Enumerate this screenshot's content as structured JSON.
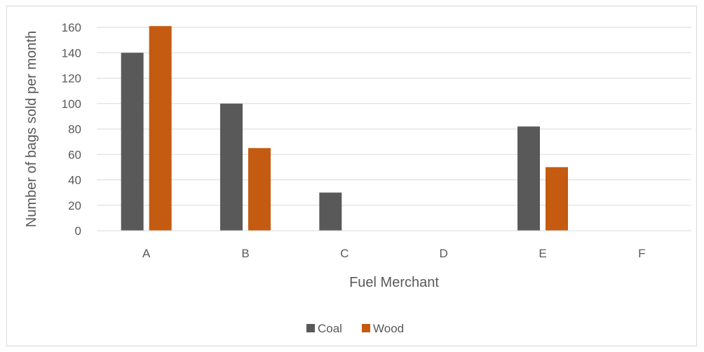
{
  "chart_data": {
    "type": "bar",
    "categories": [
      "A",
      "B",
      "C",
      "D",
      "E",
      "F"
    ],
    "series": [
      {
        "name": "Coal",
        "values": [
          140,
          100,
          30,
          0,
          82,
          0
        ],
        "color": "#595959"
      },
      {
        "name": "Wood",
        "values": [
          161,
          65,
          0,
          0,
          50,
          0
        ],
        "color": "#c55a11"
      }
    ],
    "title": "",
    "xlabel": "Fuel Merchant",
    "ylabel": "Number of bags sold per month",
    "ylim": [
      0,
      160
    ],
    "yticks": [
      0,
      20,
      40,
      60,
      80,
      100,
      120,
      140,
      160
    ],
    "grid": true,
    "legend_position": "bottom"
  }
}
